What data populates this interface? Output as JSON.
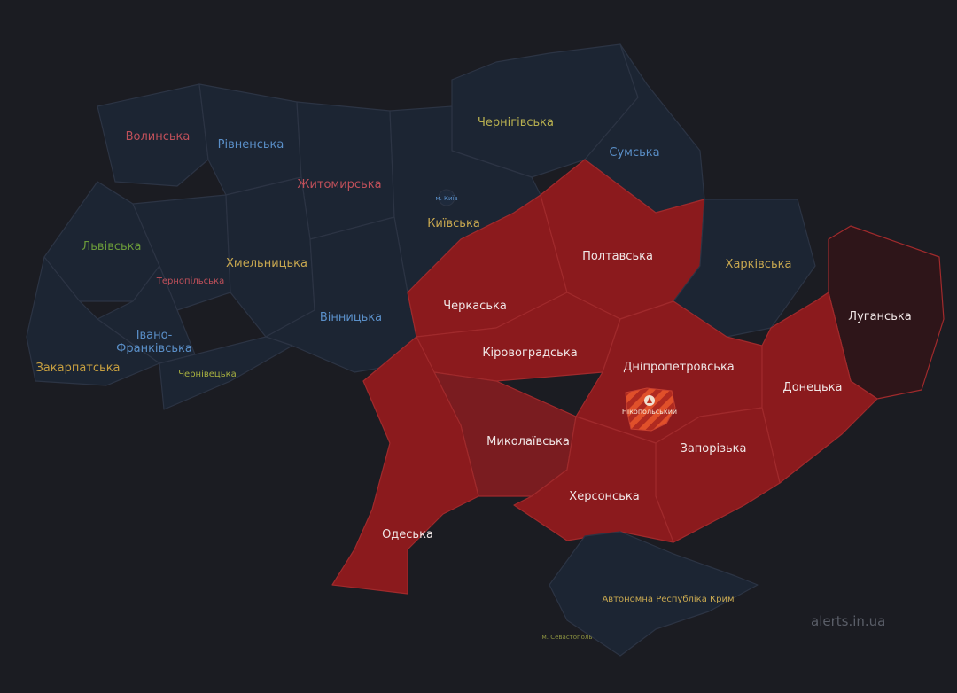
{
  "map": {
    "colors": {
      "background": "#1b1c22",
      "calm": "#1c2533",
      "alert": "#8b1a1d",
      "alert_dark": "#7a1c20",
      "occupied": "#2e1519",
      "white_label": "#f0e6e6"
    },
    "regions": [
      {
        "id": "volyn",
        "name": "Волинська",
        "status": "calm",
        "label_color": "#c0505a"
      },
      {
        "id": "rivne",
        "name": "Рівненська",
        "status": "calm",
        "label_color": "#5a8fc8"
      },
      {
        "id": "zhytomyr",
        "name": "Житомирська",
        "status": "calm",
        "label_color": "#c0505a"
      },
      {
        "id": "chernihiv",
        "name": "Чернігівська",
        "status": "calm",
        "label_color": "#b8b050"
      },
      {
        "id": "sumy",
        "name": "Сумська",
        "status": "calm",
        "label_color": "#5a8fc8"
      },
      {
        "id": "kyiv",
        "name": "Київська",
        "status": "calm",
        "label_color": "#c8a850"
      },
      {
        "id": "lviv",
        "name": "Львівська",
        "status": "calm",
        "label_color": "#6a9a3a"
      },
      {
        "id": "ternopil",
        "name": "Тернопільська",
        "status": "calm",
        "label_color": "#c0505a"
      },
      {
        "id": "khmelnytskyi",
        "name": "Хмельницька",
        "status": "calm",
        "label_color": "#c8a850"
      },
      {
        "id": "vinnytsia",
        "name": "Вінницька",
        "status": "calm",
        "label_color": "#5a8fc8"
      },
      {
        "id": "ivano",
        "name": "Івано-Франківська",
        "status": "calm",
        "label_color": "#5a8fc8"
      },
      {
        "id": "zakarpattia",
        "name": "Закарпатська",
        "status": "calm",
        "label_color": "#c8a040"
      },
      {
        "id": "chernivtsi",
        "name": "Чернівецька",
        "status": "calm",
        "label_color": "#a8b040"
      },
      {
        "id": "cherkasy",
        "name": "Черкаська",
        "status": "alert",
        "label_color": "#f0e6e6"
      },
      {
        "id": "poltava",
        "name": "Полтавська",
        "status": "alert",
        "label_color": "#f0e6e6"
      },
      {
        "id": "kharkiv",
        "name": "Харківська",
        "status": "calm",
        "label_color": "#c8a850"
      },
      {
        "id": "luhansk",
        "name": "Луганська",
        "status": "occupied",
        "label_color": "#f0e6e6"
      },
      {
        "id": "kirovohrad",
        "name": "Кіровоградська",
        "status": "alert",
        "label_color": "#f0e6e6"
      },
      {
        "id": "dnipro",
        "name": "Дніпропетровська",
        "status": "alert",
        "label_color": "#f0e6e6"
      },
      {
        "id": "donetsk",
        "name": "Донецька",
        "status": "alert",
        "label_color": "#f0e6e6"
      },
      {
        "id": "zaporizhzhia",
        "name": "Запорізька",
        "status": "alert",
        "label_color": "#f0e6e6"
      },
      {
        "id": "mykolaiv",
        "name": "Миколаївська",
        "status": "alert_dark",
        "label_color": "#f0e6e6"
      },
      {
        "id": "kherson",
        "name": "Херсонська",
        "status": "alert",
        "label_color": "#f0e6e6"
      },
      {
        "id": "odesa",
        "name": "Одеська",
        "status": "alert",
        "label_color": "#f0e6e6"
      },
      {
        "id": "crimea",
        "name": "Автономна Республіка Крим",
        "status": "calm",
        "label_color": "#c8a850"
      }
    ],
    "cities": [
      {
        "id": "kyiv-city",
        "name": "м. Київ",
        "label_color": "#5a8fc8"
      },
      {
        "id": "sevastopol",
        "name": "м. Севастополь",
        "label_color": "#8a9040"
      }
    ],
    "district_alert": {
      "name": "Нікопольський",
      "hatch_colors": [
        "#e0502a",
        "#b02a20"
      ],
      "icon": "explosion-icon"
    },
    "watermark": "alerts.in.ua"
  }
}
